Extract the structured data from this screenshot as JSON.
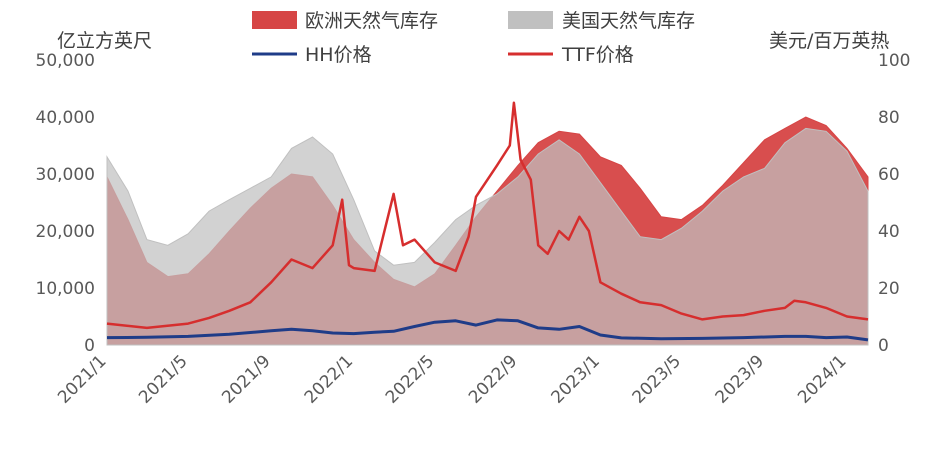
{
  "chart_data": {
    "type": "area",
    "title": "",
    "left_axis": {
      "unit": "亿立方英尺",
      "ylim": [
        0,
        50000
      ],
      "ticks": [
        "0",
        "10,000",
        "20,000",
        "30,000",
        "40,000",
        "50,000"
      ]
    },
    "right_axis": {
      "unit": "美元/百万英热",
      "ylim": [
        0,
        100
      ],
      "ticks": [
        "0",
        "20",
        "40",
        "60",
        "80",
        "100"
      ]
    },
    "x_axis": {
      "ticks": [
        "2021/1",
        "2021/5",
        "2021/9",
        "2022/1",
        "2022/5",
        "2022/9",
        "2023/1",
        "2023/5",
        "2023/9",
        "2024/1"
      ]
    },
    "legend_position": "top",
    "series": [
      {
        "name": "欧洲天然气库存",
        "kind": "area",
        "axis": "left",
        "color": "#d64545",
        "points": [
          [
            "2021-01-01",
            29500
          ],
          [
            "2021-02-01",
            22000
          ],
          [
            "2021-03-01",
            14500
          ],
          [
            "2021-04-01",
            12000
          ],
          [
            "2021-05-01",
            12500
          ],
          [
            "2021-06-01",
            16000
          ],
          [
            "2021-07-01",
            20000
          ],
          [
            "2021-08-01",
            24000
          ],
          [
            "2021-09-01",
            27500
          ],
          [
            "2021-10-01",
            30000
          ],
          [
            "2021-11-01",
            29500
          ],
          [
            "2021-12-01",
            24500
          ],
          [
            "2022-01-01",
            18500
          ],
          [
            "2022-02-01",
            14500
          ],
          [
            "2022-03-01",
            11500
          ],
          [
            "2022-04-01",
            10200
          ],
          [
            "2022-05-01",
            12500
          ],
          [
            "2022-06-01",
            17500
          ],
          [
            "2022-07-01",
            22500
          ],
          [
            "2022-08-01",
            27000
          ],
          [
            "2022-09-01",
            31500
          ],
          [
            "2022-10-01",
            35500
          ],
          [
            "2022-11-01",
            37500
          ],
          [
            "2022-12-01",
            37000
          ],
          [
            "2023-01-01",
            33000
          ],
          [
            "2023-02-01",
            31500
          ],
          [
            "2023-03-01",
            27500
          ],
          [
            "2023-04-01",
            22500
          ],
          [
            "2023-05-01",
            22000
          ],
          [
            "2023-06-01",
            24500
          ],
          [
            "2023-07-01",
            28000
          ],
          [
            "2023-08-01",
            32000
          ],
          [
            "2023-09-01",
            36000
          ],
          [
            "2023-10-01",
            38000
          ],
          [
            "2023-11-01",
            40000
          ],
          [
            "2023-12-01",
            38500
          ],
          [
            "2024-01-01",
            34500
          ],
          [
            "2024-02-01",
            29500
          ]
        ]
      },
      {
        "name": "美国天然气库存",
        "kind": "area",
        "axis": "left",
        "color": "#c0c0c0",
        "points": [
          [
            "2021-01-01",
            33000
          ],
          [
            "2021-02-01",
            27000
          ],
          [
            "2021-03-01",
            18500
          ],
          [
            "2021-04-01",
            17500
          ],
          [
            "2021-05-01",
            19500
          ],
          [
            "2021-06-01",
            23500
          ],
          [
            "2021-07-01",
            25500
          ],
          [
            "2021-08-01",
            27500
          ],
          [
            "2021-09-01",
            29500
          ],
          [
            "2021-10-01",
            34500
          ],
          [
            "2021-11-01",
            36500
          ],
          [
            "2021-12-01",
            33500
          ],
          [
            "2022-01-01",
            25500
          ],
          [
            "2022-02-01",
            16500
          ],
          [
            "2022-03-01",
            14000
          ],
          [
            "2022-04-01",
            14500
          ],
          [
            "2022-05-01",
            18000
          ],
          [
            "2022-06-01",
            22000
          ],
          [
            "2022-07-01",
            24500
          ],
          [
            "2022-08-01",
            26500
          ],
          [
            "2022-09-01",
            29500
          ],
          [
            "2022-10-01",
            33500
          ],
          [
            "2022-11-01",
            36000
          ],
          [
            "2022-12-01",
            33500
          ],
          [
            "2023-01-01",
            28500
          ],
          [
            "2023-02-01",
            23500
          ],
          [
            "2023-03-01",
            19000
          ],
          [
            "2023-04-01",
            18500
          ],
          [
            "2023-05-01",
            20500
          ],
          [
            "2023-06-01",
            23500
          ],
          [
            "2023-07-01",
            27000
          ],
          [
            "2023-08-01",
            29500
          ],
          [
            "2023-09-01",
            31000
          ],
          [
            "2023-10-01",
            35500
          ],
          [
            "2023-11-01",
            38000
          ],
          [
            "2023-12-01",
            37500
          ],
          [
            "2024-01-01",
            34000
          ],
          [
            "2024-02-01",
            27000
          ]
        ]
      },
      {
        "name": "HH价格",
        "kind": "line",
        "axis": "right",
        "color": "#1f3c88",
        "points": [
          [
            "2021-01-01",
            2.6
          ],
          [
            "2021-03-01",
            2.7
          ],
          [
            "2021-05-01",
            3.0
          ],
          [
            "2021-07-01",
            3.8
          ],
          [
            "2021-09-01",
            5.0
          ],
          [
            "2021-10-01",
            5.5
          ],
          [
            "2021-11-01",
            5.0
          ],
          [
            "2021-12-01",
            4.2
          ],
          [
            "2022-01-01",
            4.0
          ],
          [
            "2022-02-01",
            4.5
          ],
          [
            "2022-03-01",
            4.8
          ],
          [
            "2022-04-01",
            6.5
          ],
          [
            "2022-05-01",
            8.0
          ],
          [
            "2022-06-01",
            8.5
          ],
          [
            "2022-07-01",
            7.0
          ],
          [
            "2022-08-01",
            8.8
          ],
          [
            "2022-09-01",
            8.5
          ],
          [
            "2022-10-01",
            6.0
          ],
          [
            "2022-11-01",
            5.5
          ],
          [
            "2022-12-01",
            6.5
          ],
          [
            "2023-01-01",
            3.5
          ],
          [
            "2023-02-01",
            2.5
          ],
          [
            "2023-04-01",
            2.2
          ],
          [
            "2023-06-01",
            2.3
          ],
          [
            "2023-08-01",
            2.6
          ],
          [
            "2023-10-01",
            3.0
          ],
          [
            "2023-11-01",
            3.0
          ],
          [
            "2023-12-01",
            2.6
          ],
          [
            "2024-01-01",
            2.8
          ],
          [
            "2024-02-01",
            1.8
          ]
        ]
      },
      {
        "name": "TTF价格",
        "kind": "line",
        "axis": "right",
        "color": "#d62e2e",
        "points": [
          [
            "2021-01-01",
            7.5
          ],
          [
            "2021-03-01",
            6.0
          ],
          [
            "2021-05-01",
            7.5
          ],
          [
            "2021-06-01",
            9.5
          ],
          [
            "2021-07-01",
            12.0
          ],
          [
            "2021-08-01",
            15.0
          ],
          [
            "2021-09-01",
            22.0
          ],
          [
            "2021-10-01",
            30.0
          ],
          [
            "2021-11-01",
            27.0
          ],
          [
            "2021-12-01",
            35.0
          ],
          [
            "2021-12-15",
            51.0
          ],
          [
            "2021-12-25",
            28.0
          ],
          [
            "2022-01-01",
            27.0
          ],
          [
            "2022-02-01",
            26.0
          ],
          [
            "2022-03-01",
            53.0
          ],
          [
            "2022-03-15",
            35.0
          ],
          [
            "2022-04-01",
            37.0
          ],
          [
            "2022-05-01",
            29.0
          ],
          [
            "2022-06-01",
            26.0
          ],
          [
            "2022-06-20",
            38.0
          ],
          [
            "2022-07-01",
            52.0
          ],
          [
            "2022-08-01",
            63.0
          ],
          [
            "2022-08-20",
            70.0
          ],
          [
            "2022-08-26",
            85.0
          ],
          [
            "2022-09-05",
            65.0
          ],
          [
            "2022-09-20",
            58.0
          ],
          [
            "2022-10-01",
            35.0
          ],
          [
            "2022-10-15",
            32.0
          ],
          [
            "2022-11-01",
            40.0
          ],
          [
            "2022-11-15",
            37.0
          ],
          [
            "2022-12-01",
            45.0
          ],
          [
            "2022-12-15",
            40.0
          ],
          [
            "2023-01-01",
            22.0
          ],
          [
            "2023-02-01",
            18.0
          ],
          [
            "2023-03-01",
            15.0
          ],
          [
            "2023-04-01",
            14.0
          ],
          [
            "2023-05-01",
            11.0
          ],
          [
            "2023-06-01",
            9.0
          ],
          [
            "2023-07-01",
            10.0
          ],
          [
            "2023-08-01",
            10.5
          ],
          [
            "2023-09-01",
            12.0
          ],
          [
            "2023-10-01",
            13.0
          ],
          [
            "2023-10-15",
            15.5
          ],
          [
            "2023-11-01",
            15.0
          ],
          [
            "2023-12-01",
            13.0
          ],
          [
            "2024-01-01",
            10.0
          ],
          [
            "2024-02-01",
            9.0
          ]
        ]
      }
    ]
  }
}
